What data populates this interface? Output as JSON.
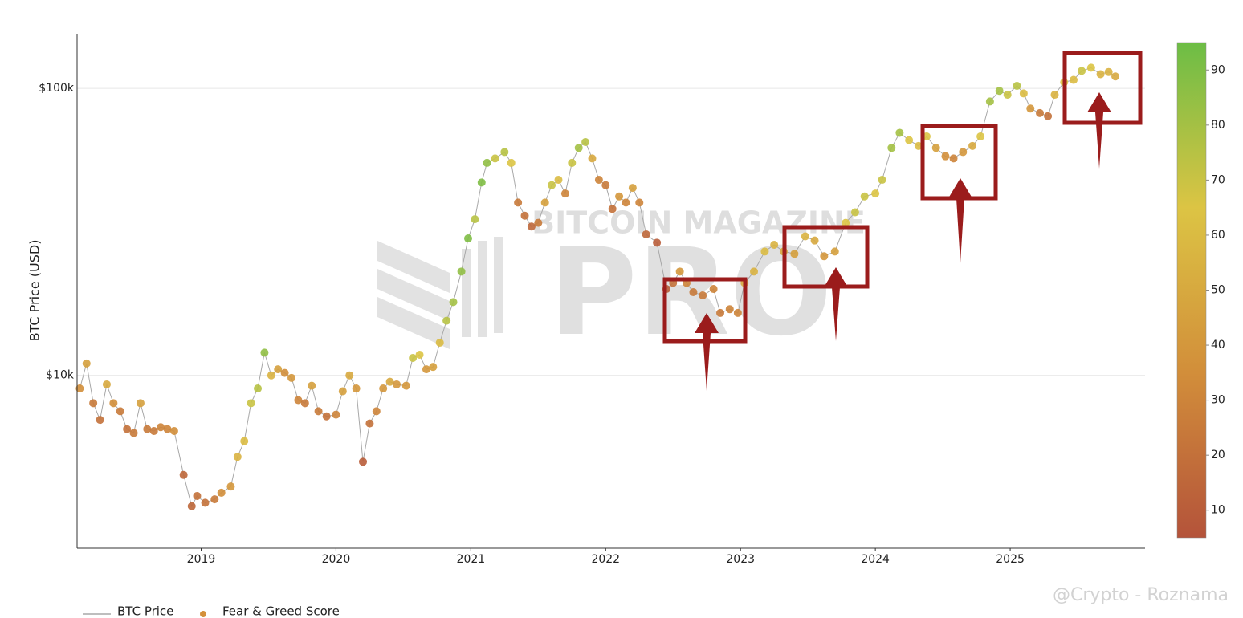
{
  "chart_data": {
    "type": "scatter",
    "y_label": "BTC Price (USD)",
    "x": [
      2018.1,
      2018.15,
      2018.2,
      2018.25,
      2018.3,
      2018.35,
      2018.4,
      2018.45,
      2018.5,
      2018.55,
      2018.6,
      2018.65,
      2018.7,
      2018.75,
      2018.8,
      2018.87,
      2018.93,
      2018.97,
      2019.03,
      2019.1,
      2019.15,
      2019.22,
      2019.27,
      2019.32,
      2019.37,
      2019.42,
      2019.47,
      2019.52,
      2019.57,
      2019.62,
      2019.67,
      2019.72,
      2019.77,
      2019.82,
      2019.87,
      2019.93,
      2020.0,
      2020.05,
      2020.1,
      2020.15,
      2020.2,
      2020.25,
      2020.3,
      2020.35,
      2020.4,
      2020.45,
      2020.52,
      2020.57,
      2020.62,
      2020.67,
      2020.72,
      2020.77,
      2020.82,
      2020.87,
      2020.93,
      2020.98,
      2021.03,
      2021.08,
      2021.12,
      2021.18,
      2021.25,
      2021.3,
      2021.35,
      2021.4,
      2021.45,
      2021.5,
      2021.55,
      2021.6,
      2021.65,
      2021.7,
      2021.75,
      2021.8,
      2021.85,
      2021.9,
      2021.95,
      2022.0,
      2022.05,
      2022.1,
      2022.15,
      2022.2,
      2022.25,
      2022.3,
      2022.38,
      2022.45,
      2022.5,
      2022.55,
      2022.6,
      2022.65,
      2022.72,
      2022.8,
      2022.85,
      2022.92,
      2022.98,
      2023.03,
      2023.1,
      2023.18,
      2023.25,
      2023.32,
      2023.4,
      2023.48,
      2023.55,
      2023.62,
      2023.7,
      2023.78,
      2023.85,
      2023.92,
      2024.0,
      2024.05,
      2024.12,
      2024.18,
      2024.25,
      2024.32,
      2024.38,
      2024.45,
      2024.52,
      2024.58,
      2024.65,
      2024.72,
      2024.78,
      2024.85,
      2024.92,
      2024.98,
      2025.05,
      2025.1,
      2025.15,
      2025.22,
      2025.28,
      2025.33,
      2025.4,
      2025.47,
      2025.53,
      2025.6,
      2025.67,
      2025.73,
      2025.78
    ],
    "series": [
      {
        "name": "BTC Price",
        "color": "#a8a8a8",
        "values": [
          9000,
          11000,
          8000,
          7000,
          9300,
          8000,
          7500,
          6500,
          6300,
          8000,
          6500,
          6400,
          6600,
          6500,
          6400,
          4500,
          3500,
          3800,
          3600,
          3700,
          3900,
          4100,
          5200,
          5900,
          8000,
          9000,
          12000,
          10000,
          10500,
          10200,
          9800,
          8200,
          8000,
          9200,
          7500,
          7200,
          7300,
          8800,
          10000,
          9000,
          5000,
          6800,
          7500,
          9000,
          9500,
          9300,
          9200,
          11500,
          11800,
          10500,
          10700,
          13000,
          15500,
          18000,
          23000,
          30000,
          35000,
          47000,
          55000,
          57000,
          60000,
          55000,
          40000,
          36000,
          33000,
          34000,
          40000,
          46000,
          48000,
          43000,
          55000,
          62000,
          65000,
          57000,
          48000,
          46000,
          38000,
          42000,
          40000,
          45000,
          40000,
          31000,
          29000,
          20000,
          21000,
          23000,
          21000,
          19500,
          19000,
          20000,
          16500,
          17000,
          16500,
          21000,
          23000,
          27000,
          28500,
          27000,
          26500,
          30500,
          29500,
          26000,
          27000,
          34000,
          37000,
          42000,
          43000,
          48000,
          62000,
          70000,
          66000,
          63000,
          68000,
          62000,
          58000,
          57000,
          60000,
          63000,
          68000,
          90000,
          98000,
          95000,
          102000,
          96000,
          85000,
          82000,
          80000,
          95000,
          105000,
          107000,
          115000,
          118000,
          112000,
          114000,
          110000
        ]
      },
      {
        "name": "Fear & Greed Score",
        "color": "#d4903a",
        "values": [
          35,
          45,
          25,
          20,
          50,
          35,
          25,
          20,
          25,
          45,
          25,
          25,
          30,
          30,
          35,
          15,
          15,
          20,
          20,
          25,
          35,
          40,
          55,
          60,
          70,
          75,
          85,
          55,
          45,
          35,
          40,
          30,
          25,
          45,
          25,
          20,
          30,
          45,
          50,
          40,
          10,
          20,
          30,
          40,
          50,
          40,
          40,
          70,
          65,
          40,
          45,
          60,
          75,
          80,
          85,
          90,
          75,
          90,
          85,
          70,
          75,
          65,
          25,
          20,
          15,
          25,
          45,
          70,
          60,
          30,
          70,
          80,
          75,
          50,
          30,
          25,
          20,
          40,
          30,
          45,
          30,
          15,
          10,
          10,
          20,
          40,
          30,
          25,
          25,
          30,
          25,
          30,
          30,
          50,
          55,
          60,
          55,
          50,
          45,
          55,
          50,
          40,
          45,
          65,
          70,
          70,
          65,
          70,
          80,
          80,
          65,
          60,
          65,
          45,
          35,
          30,
          40,
          50,
          65,
          80,
          80,
          70,
          75,
          60,
          40,
          25,
          20,
          55,
          65,
          60,
          70,
          65,
          55,
          55,
          50
        ]
      }
    ],
    "xlim": [
      2018.08,
      2026.0
    ],
    "xticks": [
      2019,
      2020,
      2021,
      2022,
      2023,
      2024,
      2025
    ],
    "ylim": [
      2500,
      155000
    ],
    "yticks": [
      {
        "value": 10000,
        "label": "$10k"
      },
      {
        "value": 100000,
        "label": "$100k"
      }
    ],
    "log_y": true,
    "grid": true,
    "legend": "bottom",
    "colorbar": {
      "lim": [
        5,
        95
      ],
      "ticks": [
        10,
        20,
        30,
        40,
        50,
        60,
        70,
        80,
        90
      ],
      "colors": [
        "#b4533a",
        "#d28e3a",
        "#dcc444",
        "#6cbd45"
      ]
    },
    "watermark": [
      "BITCOIN MAGAZINE",
      "PRO"
    ],
    "credit": "@Crypto - Roznama"
  }
}
